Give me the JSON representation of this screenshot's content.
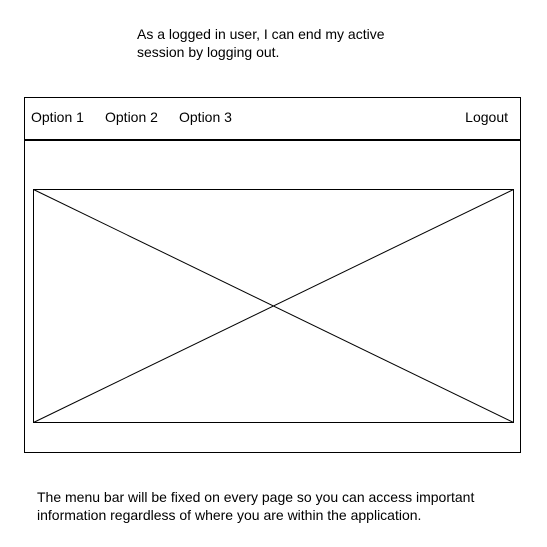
{
  "story": {
    "line1": "As a logged in user, I can end my active",
    "line2": "session by logging out."
  },
  "menubar": {
    "options": [
      "Option 1",
      "Option 2",
      "Option 3"
    ],
    "logout_label": "Logout"
  },
  "note": {
    "line1": "The menu bar will be fixed on every page so you can access important",
    "line2": "information regardless of where you are within the application."
  }
}
